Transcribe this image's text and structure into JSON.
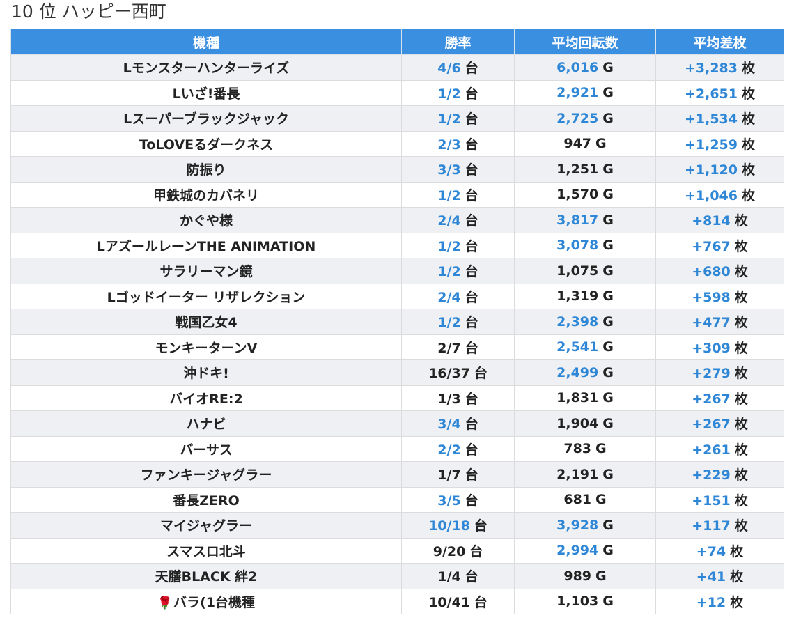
{
  "page": {
    "title": "10 位 ハッピー西町"
  },
  "table": {
    "headers": [
      "機種",
      "勝率",
      "平均回転数",
      "平均差枚"
    ],
    "rate_unit": "台",
    "spins_unit": "G",
    "diff_unit": "枚",
    "highlight_color": "#2e86d6",
    "header_color": "#3b8fe0",
    "rows": [
      {
        "name": "Lモンスターハンターライズ",
        "rate": "4/6",
        "rate_hl": true,
        "spins": "6,016",
        "spins_hl": true,
        "diff": "+3,283"
      },
      {
        "name": "Lいざ!番長",
        "rate": "1/2",
        "rate_hl": true,
        "spins": "2,921",
        "spins_hl": true,
        "diff": "+2,651"
      },
      {
        "name": "Lスーパーブラックジャック",
        "rate": "1/2",
        "rate_hl": true,
        "spins": "2,725",
        "spins_hl": true,
        "diff": "+1,534"
      },
      {
        "name": "ToLOVEるダークネス",
        "rate": "2/3",
        "rate_hl": true,
        "spins": "947",
        "spins_hl": false,
        "diff": "+1,259"
      },
      {
        "name": "防振り",
        "rate": "3/3",
        "rate_hl": true,
        "spins": "1,251",
        "spins_hl": false,
        "diff": "+1,120"
      },
      {
        "name": "甲鉄城のカバネリ",
        "rate": "1/2",
        "rate_hl": true,
        "spins": "1,570",
        "spins_hl": false,
        "diff": "+1,046"
      },
      {
        "name": "かぐや様",
        "rate": "2/4",
        "rate_hl": true,
        "spins": "3,817",
        "spins_hl": true,
        "diff": "+814"
      },
      {
        "name": "LアズールレーンTHE ANIMATION",
        "rate": "1/2",
        "rate_hl": true,
        "spins": "3,078",
        "spins_hl": true,
        "diff": "+767"
      },
      {
        "name": "サラリーマン鏡",
        "rate": "1/2",
        "rate_hl": true,
        "spins": "1,075",
        "spins_hl": false,
        "diff": "+680"
      },
      {
        "name": "Lゴッドイーター リザレクション",
        "rate": "2/4",
        "rate_hl": true,
        "spins": "1,319",
        "spins_hl": false,
        "diff": "+598"
      },
      {
        "name": "戦国乙女4",
        "rate": "1/2",
        "rate_hl": true,
        "spins": "2,398",
        "spins_hl": true,
        "diff": "+477"
      },
      {
        "name": "モンキーターンV",
        "rate": "2/7",
        "rate_hl": false,
        "spins": "2,541",
        "spins_hl": true,
        "diff": "+309"
      },
      {
        "name": "沖ドキ!",
        "rate": "16/37",
        "rate_hl": false,
        "spins": "2,499",
        "spins_hl": true,
        "diff": "+279"
      },
      {
        "name": "バイオRE:2",
        "rate": "1/3",
        "rate_hl": false,
        "spins": "1,831",
        "spins_hl": false,
        "diff": "+267"
      },
      {
        "name": "ハナビ",
        "rate": "3/4",
        "rate_hl": true,
        "spins": "1,904",
        "spins_hl": false,
        "diff": "+267"
      },
      {
        "name": "バーサス",
        "rate": "2/2",
        "rate_hl": true,
        "spins": "783",
        "spins_hl": false,
        "diff": "+261"
      },
      {
        "name": "ファンキージャグラー",
        "rate": "1/7",
        "rate_hl": false,
        "spins": "2,191",
        "spins_hl": false,
        "diff": "+229"
      },
      {
        "name": "番長ZERO",
        "rate": "3/5",
        "rate_hl": true,
        "spins": "681",
        "spins_hl": false,
        "diff": "+151"
      },
      {
        "name": "マイジャグラー",
        "rate": "10/18",
        "rate_hl": true,
        "spins": "3,928",
        "spins_hl": true,
        "diff": "+117"
      },
      {
        "name": "スマスロ北斗",
        "rate": "9/20",
        "rate_hl": false,
        "spins": "2,994",
        "spins_hl": true,
        "diff": "+74"
      },
      {
        "name": "天膳BLACK 絆2",
        "rate": "1/4",
        "rate_hl": false,
        "spins": "989",
        "spins_hl": false,
        "diff": "+41"
      },
      {
        "name": "バラ(1台機種",
        "name_icon": "rose-icon",
        "rate": "10/41",
        "rate_hl": false,
        "spins": "1,103",
        "spins_hl": false,
        "diff": "+12"
      }
    ]
  }
}
